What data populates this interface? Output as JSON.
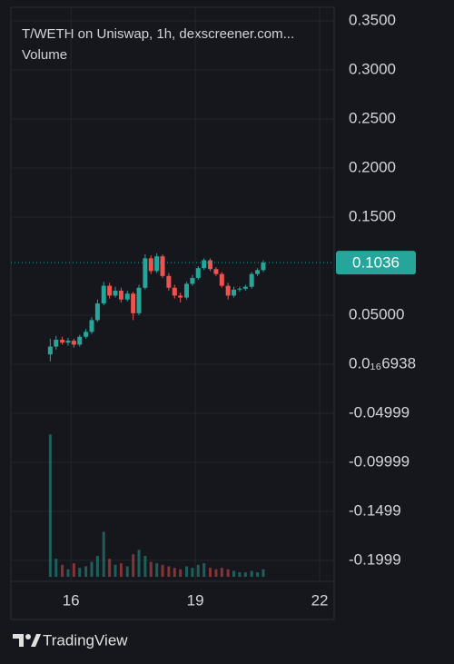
{
  "chart_data": {
    "type": "candlestick",
    "title": "T/WETH on Uniswap, 1h, dexscreener.com...",
    "volume_label": "Volume",
    "x": [
      15.5,
      15.64,
      15.79,
      15.93,
      16.07,
      16.21,
      16.36,
      16.5,
      16.64,
      16.79,
      16.93,
      17.07,
      17.21,
      17.36,
      17.5,
      17.64,
      17.79,
      17.93,
      18.07,
      18.21,
      18.36,
      18.5,
      18.64,
      18.79,
      18.93,
      19.07,
      19.21,
      19.36,
      19.5,
      19.64,
      19.79,
      19.93,
      20.07,
      20.21,
      20.36,
      20.5,
      20.64
    ],
    "open": [
      0.01,
      0.018,
      0.025,
      0.022,
      0.024,
      0.02,
      0.028,
      0.033,
      0.045,
      0.062,
      0.08,
      0.07,
      0.075,
      0.066,
      0.072,
      0.052,
      0.078,
      0.108,
      0.095,
      0.11,
      0.09,
      0.078,
      0.07,
      0.068,
      0.082,
      0.088,
      0.098,
      0.106,
      0.097,
      0.092,
      0.08,
      0.07,
      0.076,
      0.077,
      0.079,
      0.092,
      0.096
    ],
    "high": [
      0.026,
      0.029,
      0.028,
      0.027,
      0.026,
      0.03,
      0.036,
      0.048,
      0.066,
      0.084,
      0.083,
      0.079,
      0.078,
      0.075,
      0.074,
      0.081,
      0.112,
      0.111,
      0.113,
      0.112,
      0.093,
      0.081,
      0.073,
      0.084,
      0.091,
      0.1,
      0.108,
      0.108,
      0.099,
      0.094,
      0.083,
      0.079,
      0.079,
      0.081,
      0.094,
      0.098,
      0.106
    ],
    "low": [
      0.003,
      0.015,
      0.02,
      0.019,
      0.017,
      0.018,
      0.026,
      0.031,
      0.043,
      0.06,
      0.067,
      0.068,
      0.063,
      0.064,
      0.045,
      0.05,
      0.076,
      0.092,
      0.093,
      0.088,
      0.075,
      0.067,
      0.063,
      0.066,
      0.08,
      0.086,
      0.096,
      0.095,
      0.09,
      0.078,
      0.066,
      0.068,
      0.074,
      0.075,
      0.077,
      0.09,
      0.094
    ],
    "close": [
      0.018,
      0.025,
      0.022,
      0.024,
      0.02,
      0.028,
      0.033,
      0.045,
      0.062,
      0.08,
      0.07,
      0.075,
      0.066,
      0.072,
      0.052,
      0.078,
      0.108,
      0.095,
      0.11,
      0.09,
      0.078,
      0.07,
      0.068,
      0.082,
      0.088,
      0.098,
      0.106,
      0.097,
      0.092,
      0.08,
      0.07,
      0.076,
      0.077,
      0.079,
      0.092,
      0.096,
      0.1036
    ],
    "volume": [
      95,
      12,
      8,
      5,
      9,
      6,
      7,
      10,
      14,
      30,
      12,
      8,
      9,
      7,
      15,
      18,
      14,
      10,
      9,
      8,
      7,
      6,
      5,
      7,
      6,
      8,
      9,
      6,
      5,
      6,
      5,
      4,
      3,
      3,
      4,
      3,
      5
    ],
    "volume_ylim": [
      0,
      100
    ],
    "up_color": "#26a69a",
    "down_color": "#ef5350",
    "ylim": [
      -0.2213,
      0.3639
    ],
    "yticks": [
      {
        "value": 0.35,
        "label": "0.3500"
      },
      {
        "value": 0.3,
        "label": "0.3000"
      },
      {
        "value": 0.25,
        "label": "0.2500"
      },
      {
        "value": 0.2,
        "label": "0.2000"
      },
      {
        "value": 0.15,
        "label": "0.1500"
      },
      {
        "value": 0.05,
        "label": "0.05000"
      },
      {
        "value": 6.938e-17,
        "label": "0.0₁₆6938"
      },
      {
        "value": -0.04999,
        "label": "-0.04999"
      },
      {
        "value": -0.09999,
        "label": "-0.09999"
      },
      {
        "value": -0.1499,
        "label": "-0.1499"
      },
      {
        "value": -0.1999,
        "label": "-0.1999"
      }
    ],
    "xlim": [
      14.55,
      22.35
    ],
    "xticks": [
      16,
      19,
      22
    ],
    "last_price": 0.1036,
    "grid": true
  },
  "footer": {
    "brand": "TradingView"
  }
}
